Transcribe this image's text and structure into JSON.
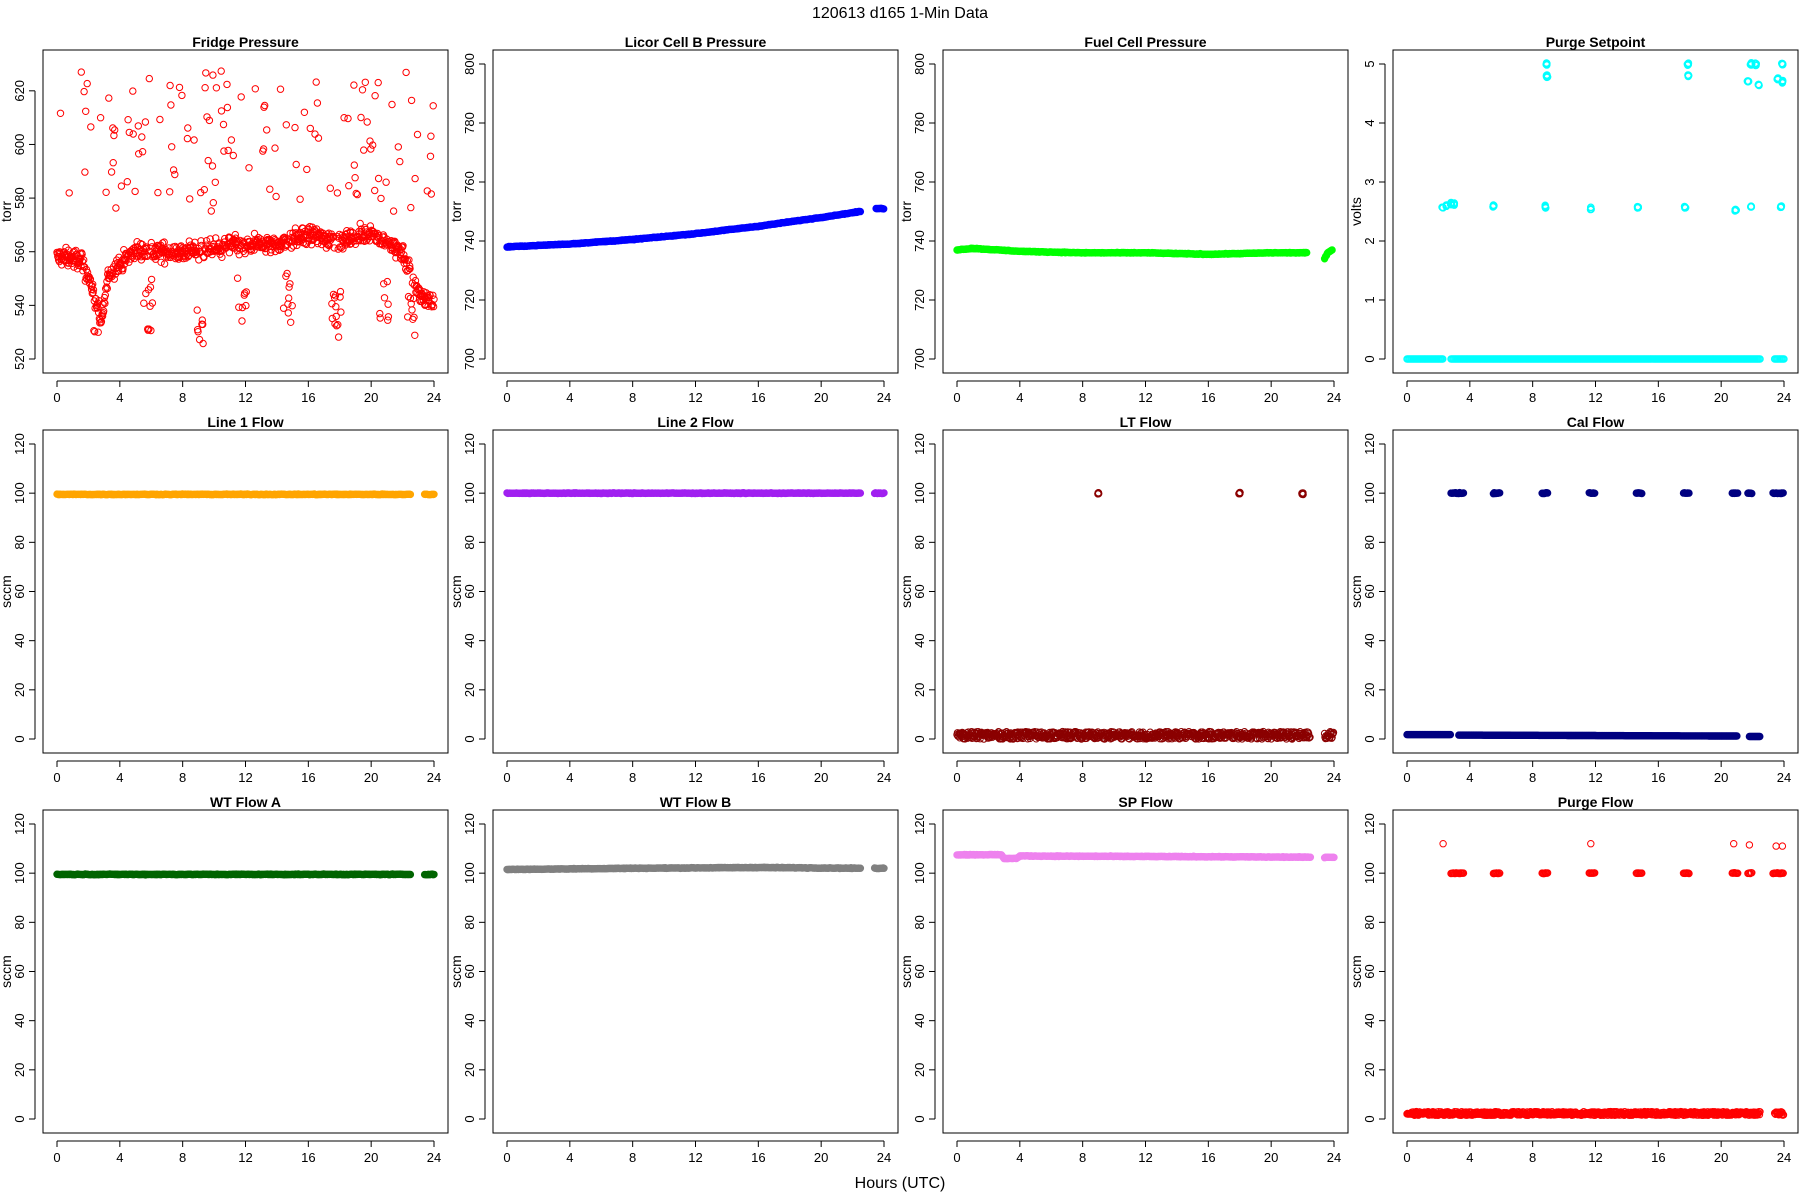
{
  "figure": {
    "title": "120613    d165    1-Min Data",
    "xlabel": "Hours (UTC)"
  },
  "chart_data": [
    {
      "type": "scatter",
      "title": "Fridge Pressure",
      "ylabel": "torr",
      "color": "#ff0000",
      "marker": "circle-open",
      "xlim": [
        0,
        24
      ],
      "xticks": [
        0,
        4,
        8,
        12,
        16,
        20,
        24
      ],
      "ylim": [
        520,
        630
      ],
      "yticks": [
        520,
        540,
        560,
        580,
        600,
        620
      ],
      "series": [
        {
          "name": "",
          "pattern": "noisy-pressure",
          "x_range": [
            0,
            24
          ],
          "baseline": [
            [
              0,
              558
            ],
            [
              1.5,
              557
            ],
            [
              2.2,
              548
            ],
            [
              2.8,
              533
            ],
            [
              3.3,
              552
            ],
            [
              5,
              560
            ],
            [
              8,
              560
            ],
            [
              11,
              562
            ],
            [
              14,
              563
            ],
            [
              16,
              566
            ],
            [
              18,
              564
            ],
            [
              20,
              567
            ],
            [
              22,
              560
            ],
            [
              23,
              545
            ],
            [
              24,
              540
            ]
          ],
          "outlier_range": [
            575,
            628
          ],
          "dips": [
            [
              2.5,
              523
            ],
            [
              5.8,
              530
            ],
            [
              9.2,
              522
            ],
            [
              11.8,
              532
            ],
            [
              14.7,
              533
            ],
            [
              17.8,
              528
            ],
            [
              20.8,
              530
            ],
            [
              22.6,
              528
            ]
          ]
        }
      ]
    },
    {
      "type": "scatter",
      "title": "Licor Cell B Pressure",
      "ylabel": "torr",
      "color": "#0000ff",
      "marker": "circle-filled",
      "xlim": [
        0,
        24
      ],
      "xticks": [
        0,
        4,
        8,
        12,
        16,
        20,
        24
      ],
      "ylim": [
        700,
        800
      ],
      "yticks": [
        700,
        720,
        740,
        760,
        780,
        800
      ],
      "series": [
        {
          "name": "",
          "segments": [
            [
              [
                0,
                738
              ],
              [
                4,
                739
              ],
              [
                8,
                740.5
              ],
              [
                12,
                742.5
              ],
              [
                16,
                745
              ],
              [
                20,
                748
              ],
              [
                22.5,
                750
              ]
            ],
            [
              [
                23.5,
                751
              ],
              [
                24,
                751
              ]
            ]
          ]
        }
      ]
    },
    {
      "type": "scatter",
      "title": "Fuel Cell Pressure",
      "ylabel": "torr",
      "color": "#00ff00",
      "marker": "circle-filled",
      "xlim": [
        0,
        24
      ],
      "xticks": [
        0,
        4,
        8,
        12,
        16,
        20,
        24
      ],
      "ylim": [
        700,
        800
      ],
      "yticks": [
        700,
        720,
        740,
        760,
        780,
        800
      ],
      "series": [
        {
          "name": "",
          "segments": [
            [
              [
                0,
                737
              ],
              [
                1,
                737.5
              ],
              [
                4,
                736.5
              ],
              [
                8,
                736
              ],
              [
                12,
                736
              ],
              [
                16,
                735.5
              ],
              [
                20,
                736
              ],
              [
                22.3,
                736
              ]
            ],
            [
              [
                23.4,
                734
              ],
              [
                23.6,
                736
              ],
              [
                23.9,
                737
              ]
            ]
          ]
        }
      ]
    },
    {
      "type": "scatter",
      "title": "Purge Setpoint",
      "ylabel": "volts",
      "color": "#00ffff",
      "marker": "circle-open",
      "xlim": [
        0,
        24
      ],
      "xticks": [
        0,
        4,
        8,
        12,
        16,
        20,
        24
      ],
      "ylim": [
        0,
        5
      ],
      "yticks": [
        0,
        1,
        2,
        3,
        4,
        5
      ],
      "series": [
        {
          "name": "",
          "baseline": 0,
          "baseline_segments": [
            [
              0,
              2.3
            ],
            [
              2.8,
              22.5
            ],
            [
              23.4,
              24
            ]
          ],
          "clusters": [
            [
              2.3,
              2.57
            ],
            [
              2.5,
              2.6
            ],
            [
              2.8,
              2.64
            ],
            [
              3.0,
              2.63
            ],
            [
              5.5,
              2.6
            ],
            [
              8.8,
              2.58
            ],
            [
              11.7,
              2.55
            ],
            [
              14.7,
              2.57
            ],
            [
              17.7,
              2.57
            ],
            [
              20.9,
              2.53
            ],
            [
              21.9,
              2.58
            ],
            [
              23.8,
              2.58
            ],
            [
              8.9,
              5.0
            ],
            [
              8.9,
              4.8
            ],
            [
              17.9,
              5.0
            ],
            [
              17.9,
              4.8
            ],
            [
              21.9,
              5.0
            ],
            [
              22.2,
              5.0
            ],
            [
              23.9,
              5.0
            ],
            [
              21.7,
              4.7
            ],
            [
              22.4,
              4.65
            ],
            [
              23.6,
              4.75
            ],
            [
              23.9,
              4.7
            ]
          ]
        }
      ]
    },
    {
      "type": "scatter",
      "title": "Line 1 Flow",
      "ylabel": "sccm",
      "color": "#ffa500",
      "marker": "circle-filled",
      "xlim": [
        0,
        24
      ],
      "xticks": [
        0,
        4,
        8,
        12,
        16,
        20,
        24
      ],
      "ylim": [
        0,
        120
      ],
      "yticks": [
        0,
        20,
        40,
        60,
        80,
        100,
        120
      ],
      "series": [
        {
          "name": "",
          "segments": [
            [
              [
                0,
                99.5
              ],
              [
                22.5,
                99.5
              ]
            ],
            [
              [
                23.4,
                99.5
              ],
              [
                24,
                99.5
              ]
            ]
          ]
        }
      ]
    },
    {
      "type": "scatter",
      "title": "Line 2 Flow",
      "ylabel": "sccm",
      "color": "#a020f0",
      "marker": "circle-filled",
      "xlim": [
        0,
        24
      ],
      "xticks": [
        0,
        4,
        8,
        12,
        16,
        20,
        24
      ],
      "ylim": [
        0,
        120
      ],
      "yticks": [
        0,
        20,
        40,
        60,
        80,
        100,
        120
      ],
      "series": [
        {
          "name": "",
          "segments": [
            [
              [
                0,
                100
              ],
              [
                22.5,
                100
              ]
            ],
            [
              [
                23.4,
                100
              ],
              [
                24,
                100
              ]
            ]
          ]
        }
      ]
    },
    {
      "type": "scatter",
      "title": "LT Flow",
      "ylabel": "sccm",
      "color": "#8b0000",
      "marker": "circle-open",
      "xlim": [
        0,
        24
      ],
      "xticks": [
        0,
        4,
        8,
        12,
        16,
        20,
        24
      ],
      "ylim": [
        0,
        120
      ],
      "yticks": [
        0,
        20,
        40,
        60,
        80,
        100,
        120
      ],
      "series": [
        {
          "name": "",
          "pattern": "noisy-band",
          "band": [
            0,
            3
          ],
          "band_segments": [
            [
              0,
              22.5
            ],
            [
              23.4,
              24
            ]
          ],
          "clusters": [
            [
              9.0,
              100
            ],
            [
              18.0,
              100
            ],
            [
              22.0,
              100
            ]
          ]
        }
      ]
    },
    {
      "type": "scatter",
      "title": "Cal Flow",
      "ylabel": "sccm",
      "color": "#000080",
      "marker": "circle-filled",
      "xlim": [
        0,
        24
      ],
      "xticks": [
        0,
        4,
        8,
        12,
        16,
        20,
        24
      ],
      "ylim": [
        0,
        120
      ],
      "yticks": [
        0,
        20,
        40,
        60,
        80,
        100,
        120
      ],
      "series": [
        {
          "name": "",
          "baseline_segments": [
            [
              [
                0,
                1.8
              ],
              [
                2.8,
                1.8
              ]
            ],
            [
              [
                3.3,
                1.6
              ],
              [
                21.0,
                1.2
              ]
            ],
            [
              [
                21.8,
                1.0
              ],
              [
                22.5,
                1.0
              ]
            ]
          ],
          "high_segments": [
            [
              2.8,
              3.6
            ],
            [
              5.5,
              5.9
            ],
            [
              8.6,
              9.0
            ],
            [
              11.6,
              12.0
            ],
            [
              14.6,
              15.0
            ],
            [
              17.6,
              18.0
            ],
            [
              20.7,
              21.1
            ],
            [
              21.7,
              22.0
            ],
            [
              23.3,
              24.0
            ]
          ],
          "high_value": 100
        }
      ]
    },
    {
      "type": "scatter",
      "title": "WT Flow A",
      "ylabel": "sccm",
      "color": "#006400",
      "marker": "circle-filled",
      "xlim": [
        0,
        24
      ],
      "xticks": [
        0,
        4,
        8,
        12,
        16,
        20,
        24
      ],
      "ylim": [
        0,
        120
      ],
      "yticks": [
        0,
        20,
        40,
        60,
        80,
        100,
        120
      ],
      "series": [
        {
          "name": "",
          "segments": [
            [
              [
                0,
                99.5
              ],
              [
                22.5,
                99.5
              ]
            ],
            [
              [
                23.4,
                99.5
              ],
              [
                24,
                99.5
              ]
            ]
          ]
        }
      ]
    },
    {
      "type": "scatter",
      "title": "WT Flow B",
      "ylabel": "sccm",
      "color": "#808080",
      "marker": "circle-filled",
      "xlim": [
        0,
        24
      ],
      "xticks": [
        0,
        4,
        8,
        12,
        16,
        20,
        24
      ],
      "ylim": [
        0,
        120
      ],
      "yticks": [
        0,
        20,
        40,
        60,
        80,
        100,
        120
      ],
      "series": [
        {
          "name": "",
          "segments": [
            [
              [
                0,
                101.5
              ],
              [
                8,
                102
              ],
              [
                16,
                102.3
              ],
              [
                22.5,
                102
              ]
            ],
            [
              [
                23.4,
                102
              ],
              [
                24,
                102
              ]
            ]
          ]
        }
      ]
    },
    {
      "type": "scatter",
      "title": "SP Flow",
      "ylabel": "sccm",
      "color": "#ee82ee",
      "marker": "circle-filled",
      "xlim": [
        0,
        24
      ],
      "xticks": [
        0,
        4,
        8,
        12,
        16,
        20,
        24
      ],
      "ylim": [
        0,
        120
      ],
      "yticks": [
        0,
        20,
        40,
        60,
        80,
        100,
        120
      ],
      "series": [
        {
          "name": "",
          "segments": [
            [
              [
                0,
                107.5
              ],
              [
                2.8,
                107.5
              ],
              [
                3.0,
                106
              ],
              [
                3.8,
                106
              ],
              [
                4.0,
                107
              ],
              [
                22.5,
                106.5
              ]
            ],
            [
              [
                23.4,
                106.5
              ],
              [
                24,
                106.5
              ]
            ]
          ]
        }
      ]
    },
    {
      "type": "scatter",
      "title": "Purge Flow",
      "ylabel": "sccm",
      "color": "#ff0000",
      "marker": "circle-open",
      "xlim": [
        0,
        24
      ],
      "xticks": [
        0,
        4,
        8,
        12,
        16,
        20,
        24
      ],
      "ylim": [
        0,
        120
      ],
      "yticks": [
        0,
        20,
        40,
        60,
        80,
        100,
        120
      ],
      "series": [
        {
          "name": "",
          "pattern": "noisy-band",
          "band": [
            1.5,
            3
          ],
          "band_segments": [
            [
              0,
              22.5
            ],
            [
              23.4,
              24
            ]
          ],
          "high_segments": [
            [
              2.8,
              3.6
            ],
            [
              5.5,
              5.9
            ],
            [
              8.6,
              9.0
            ],
            [
              11.6,
              12.0
            ],
            [
              14.6,
              15.0
            ],
            [
              17.6,
              18.0
            ],
            [
              20.7,
              21.1
            ],
            [
              21.7,
              22.0
            ],
            [
              23.3,
              24.0
            ]
          ],
          "high_value": 100,
          "outliers": [
            [
              2.3,
              112
            ],
            [
              11.7,
              112
            ],
            [
              20.8,
              112
            ],
            [
              21.8,
              111.5
            ],
            [
              23.5,
              111
            ],
            [
              23.9,
              111
            ]
          ]
        }
      ]
    }
  ]
}
